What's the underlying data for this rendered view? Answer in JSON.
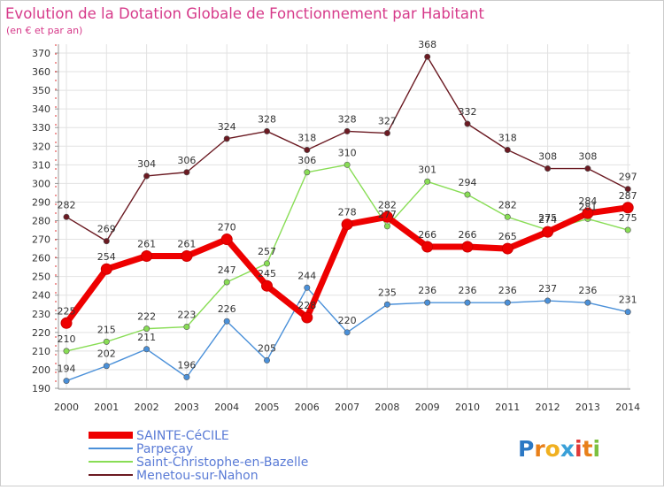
{
  "chart_data": {
    "type": "line",
    "title": "Evolution de la Dotation Globale de Fonctionnement par Habitant",
    "subtitle": "(en € et par an)",
    "xlabel": "",
    "ylabel": "",
    "categories": [
      "2000",
      "2001",
      "2002",
      "2003",
      "2004",
      "2005",
      "2006",
      "2007",
      "2008",
      "2009",
      "2010",
      "2011",
      "2012",
      "2013",
      "2014"
    ],
    "ylim": [
      190,
      370
    ],
    "yticks": [
      190,
      200,
      210,
      220,
      230,
      240,
      250,
      260,
      270,
      280,
      290,
      300,
      310,
      320,
      330,
      340,
      350,
      360,
      370
    ],
    "grid": true,
    "legend_position": "bottom-left",
    "series": [
      {
        "name": "Menetou-sur-Nahon",
        "color": "#6b1a22",
        "values": [
          282,
          269,
          304,
          306,
          324,
          328,
          318,
          328,
          327,
          368,
          332,
          318,
          308,
          308,
          297
        ]
      },
      {
        "name": "Saint-Christophe-en-Bazelle",
        "color": "#88dd55",
        "values": [
          210,
          215,
          222,
          223,
          247,
          257,
          306,
          310,
          277,
          301,
          294,
          282,
          275,
          281,
          275
        ]
      },
      {
        "name": "Parpeçay",
        "color": "#4a90d9",
        "values": [
          194,
          202,
          211,
          196,
          226,
          205,
          244,
          220,
          235,
          236,
          236,
          236,
          237,
          236,
          231
        ]
      },
      {
        "name": "SAINTE-CéCILE",
        "color": "#ee0000",
        "values": [
          225,
          254,
          261,
          261,
          270,
          245,
          228,
          278,
          282,
          266,
          266,
          265,
          274,
          284,
          287
        ]
      }
    ]
  },
  "logo": {
    "text": "Proxiti"
  }
}
